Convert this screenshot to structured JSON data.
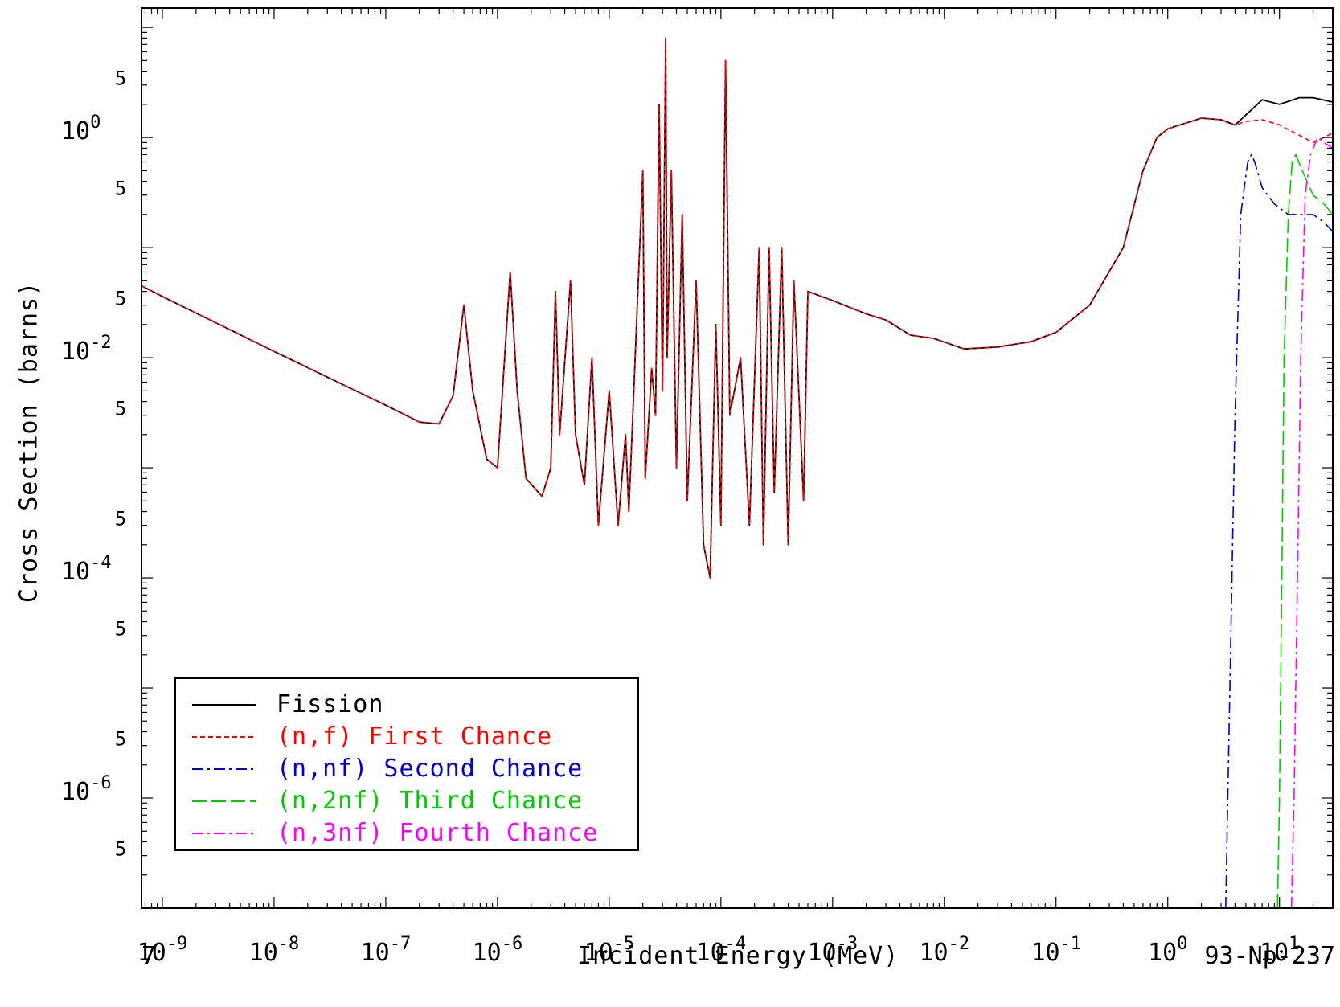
{
  "chart_data": {
    "type": "line",
    "title": "",
    "xlabel": "Incident Energy (MeV)",
    "ylabel": "Cross Section (barns)",
    "x_scale": "log",
    "y_scale": "log",
    "xlim": [
      6.5e-10,
      30
    ],
    "ylim": [
      1e-07,
      15
    ],
    "x_tick_labels": [
      "10-9",
      "10-8",
      "10-7",
      "10-6",
      "10-5",
      "10-4",
      "10-3",
      "10-2",
      "10-1",
      "100",
      "101"
    ],
    "y_tick_labels": [
      "10-6",
      "10-4",
      "10-2",
      "100"
    ],
    "y_minor_label": "5",
    "page_label": "7",
    "isotope": "93-Np-237",
    "legend_position": "bottom-left",
    "series": [
      {
        "name": "Fission",
        "color": "#000000",
        "dash": "solid",
        "points": [
          [
            6.5e-10,
            0.045
          ],
          [
            1e-09,
            0.036
          ],
          [
            1e-08,
            0.0114
          ],
          [
            1e-07,
            0.0037
          ],
          [
            2e-07,
            0.0026
          ],
          [
            3e-07,
            0.0025
          ],
          [
            4e-07,
            0.0045
          ],
          [
            5e-07,
            0.03
          ],
          [
            6e-07,
            0.005
          ],
          [
            8e-07,
            0.0012
          ],
          [
            1e-06,
            0.001
          ],
          [
            1.3e-06,
            0.06
          ],
          [
            1.5e-06,
            0.005
          ],
          [
            1.8e-06,
            0.0008
          ],
          [
            2.5e-06,
            0.00055
          ],
          [
            3e-06,
            0.001
          ],
          [
            3.3e-06,
            0.04
          ],
          [
            3.6e-06,
            0.002
          ],
          [
            4.5e-06,
            0.05
          ],
          [
            5e-06,
            0.002
          ],
          [
            6e-06,
            0.0007
          ],
          [
            7e-06,
            0.01
          ],
          [
            8e-06,
            0.0003
          ],
          [
            1e-05,
            0.005
          ],
          [
            1.2e-05,
            0.0003
          ],
          [
            1.4e-05,
            0.002
          ],
          [
            1.5e-05,
            0.0004
          ],
          [
            2e-05,
            0.5
          ],
          [
            2.1e-05,
            0.0008
          ],
          [
            2.4e-05,
            0.008
          ],
          [
            2.6e-05,
            0.003
          ],
          [
            2.8e-05,
            2.0
          ],
          [
            3e-05,
            0.005
          ],
          [
            3.2e-05,
            8.0
          ],
          [
            3.3e-05,
            0.01
          ],
          [
            3.6e-05,
            0.5
          ],
          [
            4e-05,
            0.001
          ],
          [
            4.5e-05,
            0.2
          ],
          [
            5e-05,
            0.0005
          ],
          [
            6e-05,
            0.05
          ],
          [
            7e-05,
            0.0002
          ],
          [
            8e-05,
            0.0001
          ],
          [
            9e-05,
            0.02
          ],
          [
            0.0001,
            0.0003
          ],
          [
            0.00011,
            5.0
          ],
          [
            0.00012,
            0.003
          ],
          [
            0.00015,
            0.01
          ],
          [
            0.00018,
            0.0003
          ],
          [
            0.00022,
            0.1
          ],
          [
            0.00024,
            0.0002
          ],
          [
            0.00027,
            0.1
          ],
          [
            0.0003,
            0.0006
          ],
          [
            0.00035,
            0.1
          ],
          [
            0.0004,
            0.0002
          ],
          [
            0.00045,
            0.05
          ],
          [
            0.00055,
            0.0005
          ],
          [
            0.0006,
            0.04
          ],
          [
            0.001,
            0.033
          ],
          [
            0.002,
            0.025
          ],
          [
            0.003,
            0.022
          ],
          [
            0.005,
            0.016
          ],
          [
            0.008,
            0.015
          ],
          [
            0.015,
            0.012
          ],
          [
            0.03,
            0.0125
          ],
          [
            0.06,
            0.014
          ],
          [
            0.1,
            0.017
          ],
          [
            0.2,
            0.03
          ],
          [
            0.4,
            0.1
          ],
          [
            0.6,
            0.5
          ],
          [
            0.8,
            1.0
          ],
          [
            1,
            1.2
          ],
          [
            2,
            1.5
          ],
          [
            3,
            1.45
          ],
          [
            4,
            1.3
          ],
          [
            5,
            1.6
          ],
          [
            7,
            2.2
          ],
          [
            10,
            2.0
          ],
          [
            15,
            2.3
          ],
          [
            20,
            2.3
          ],
          [
            30,
            2.1
          ]
        ]
      },
      {
        "name": "(n,f) First Chance",
        "color": "#ff0000",
        "dash": "6,4",
        "points": [
          [
            6.5e-10,
            0.045
          ],
          [
            1e-09,
            0.036
          ],
          [
            1e-08,
            0.0114
          ],
          [
            1e-07,
            0.0037
          ],
          [
            2e-07,
            0.0026
          ],
          [
            3e-07,
            0.0025
          ],
          [
            4e-07,
            0.0045
          ],
          [
            5e-07,
            0.03
          ],
          [
            6e-07,
            0.005
          ],
          [
            8e-07,
            0.0012
          ],
          [
            1e-06,
            0.001
          ],
          [
            1.3e-06,
            0.06
          ],
          [
            1.5e-06,
            0.005
          ],
          [
            1.8e-06,
            0.0008
          ],
          [
            2.5e-06,
            0.00055
          ],
          [
            3e-06,
            0.001
          ],
          [
            3.3e-06,
            0.04
          ],
          [
            3.6e-06,
            0.002
          ],
          [
            4.5e-06,
            0.05
          ],
          [
            5e-06,
            0.002
          ],
          [
            6e-06,
            0.0007
          ],
          [
            7e-06,
            0.01
          ],
          [
            8e-06,
            0.0003
          ],
          [
            1e-05,
            0.005
          ],
          [
            1.2e-05,
            0.0003
          ],
          [
            1.4e-05,
            0.002
          ],
          [
            1.5e-05,
            0.0004
          ],
          [
            2e-05,
            0.5
          ],
          [
            2.1e-05,
            0.0008
          ],
          [
            2.4e-05,
            0.008
          ],
          [
            2.6e-05,
            0.003
          ],
          [
            2.8e-05,
            2.0
          ],
          [
            3e-05,
            0.005
          ],
          [
            3.2e-05,
            8.0
          ],
          [
            3.3e-05,
            0.01
          ],
          [
            3.6e-05,
            0.5
          ],
          [
            4e-05,
            0.001
          ],
          [
            4.5e-05,
            0.2
          ],
          [
            5e-05,
            0.0005
          ],
          [
            6e-05,
            0.05
          ],
          [
            7e-05,
            0.0002
          ],
          [
            8e-05,
            0.0001
          ],
          [
            9e-05,
            0.02
          ],
          [
            0.0001,
            0.0003
          ],
          [
            0.00011,
            5.0
          ],
          [
            0.00012,
            0.003
          ],
          [
            0.00015,
            0.01
          ],
          [
            0.00018,
            0.0003
          ],
          [
            0.00022,
            0.1
          ],
          [
            0.00024,
            0.0002
          ],
          [
            0.00027,
            0.1
          ],
          [
            0.0003,
            0.0006
          ],
          [
            0.00035,
            0.1
          ],
          [
            0.0004,
            0.0002
          ],
          [
            0.00045,
            0.05
          ],
          [
            0.00055,
            0.0005
          ],
          [
            0.0006,
            0.04
          ],
          [
            0.001,
            0.033
          ],
          [
            0.002,
            0.025
          ],
          [
            0.003,
            0.022
          ],
          [
            0.005,
            0.016
          ],
          [
            0.008,
            0.015
          ],
          [
            0.015,
            0.012
          ],
          [
            0.03,
            0.0125
          ],
          [
            0.06,
            0.014
          ],
          [
            0.1,
            0.017
          ],
          [
            0.2,
            0.03
          ],
          [
            0.4,
            0.1
          ],
          [
            0.6,
            0.5
          ],
          [
            0.8,
            1.0
          ],
          [
            1,
            1.2
          ],
          [
            2,
            1.5
          ],
          [
            3,
            1.45
          ],
          [
            4,
            1.3
          ],
          [
            5,
            1.4
          ],
          [
            7,
            1.45
          ],
          [
            10,
            1.3
          ],
          [
            15,
            1.05
          ],
          [
            20,
            0.9
          ],
          [
            25,
            1.0
          ],
          [
            30,
            1.1
          ]
        ]
      },
      {
        "name": "(n,nf) Second Chance",
        "color": "#0000cc",
        "dash": "14,5,3,5",
        "points": [
          [
            3.3,
            1e-07
          ],
          [
            3.6,
            1e-05
          ],
          [
            4,
            0.003
          ],
          [
            4.5,
            0.2
          ],
          [
            5.2,
            0.6
          ],
          [
            5.6,
            0.7
          ],
          [
            6,
            0.6
          ],
          [
            7,
            0.35
          ],
          [
            9,
            0.25
          ],
          [
            12,
            0.2
          ],
          [
            16,
            0.2
          ],
          [
            20,
            0.2
          ],
          [
            25,
            0.17
          ],
          [
            30,
            0.14
          ]
        ]
      },
      {
        "name": "(n,2nf) Third Chance",
        "color": "#00cc00",
        "dash": "18,6",
        "points": [
          [
            9.6,
            1e-07
          ],
          [
            10,
            1e-06
          ],
          [
            10.5,
            0.0001
          ],
          [
            11,
            0.01
          ],
          [
            12,
            0.2
          ],
          [
            13,
            0.6
          ],
          [
            14,
            0.7
          ],
          [
            16,
            0.5
          ],
          [
            20,
            0.3
          ],
          [
            25,
            0.25
          ],
          [
            30,
            0.2
          ]
        ]
      },
      {
        "name": "(n,3nf) Fourth Chance",
        "color": "#ff00ff",
        "dash": "14,5,3,5",
        "points": [
          [
            12.8,
            1e-07
          ],
          [
            13.5,
            1e-06
          ],
          [
            14.5,
            0.0001
          ],
          [
            15.5,
            0.01
          ],
          [
            17,
            0.3
          ],
          [
            19,
            0.7
          ],
          [
            22,
            1.0
          ],
          [
            25,
            0.9
          ],
          [
            30,
            0.8
          ]
        ]
      }
    ]
  }
}
